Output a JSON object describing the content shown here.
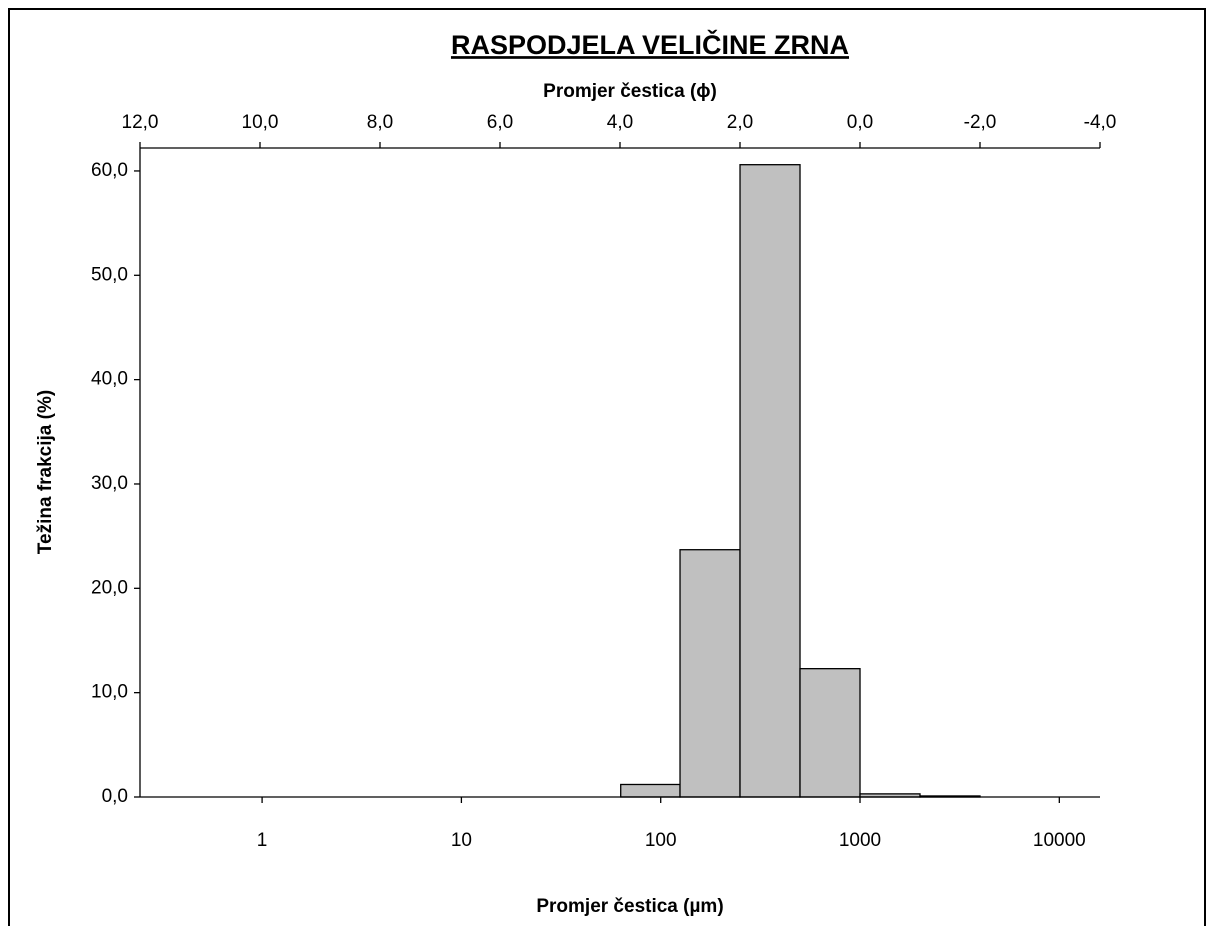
{
  "chart_data": {
    "type": "histogram",
    "title": "RASPODJELA VELIČINE ZRNA",
    "x2_label": "Promjer čestica (ϕ)",
    "x_label": "Promjer čestica (µm)",
    "y_label": "Težina frakcija (%)",
    "bins": [
      63,
      125,
      250,
      500,
      1000,
      2000,
      4000
    ],
    "counts": [
      1.2,
      23.7,
      60.6,
      12.3,
      0.3,
      0.1
    ],
    "color": "#c0c0c0",
    "x_scale": "log",
    "xlim": [
      0.244,
      16000
    ],
    "xticks": [
      1,
      10,
      100,
      1000,
      10000
    ],
    "x2lim": [
      12,
      -4
    ],
    "x2ticks": [
      {
        "value": 12,
        "label": "12,0"
      },
      {
        "value": 10,
        "label": "10,0"
      },
      {
        "value": 8,
        "label": "8,0"
      },
      {
        "value": 6,
        "label": "6,0"
      },
      {
        "value": 4,
        "label": "4,0"
      },
      {
        "value": 2,
        "label": "2,0"
      },
      {
        "value": 0,
        "label": "0,0"
      },
      {
        "value": -2,
        "label": "-2,0"
      },
      {
        "value": -4,
        "label": "-4,0"
      }
    ],
    "ylim": [
      0,
      62.2
    ],
    "yticks": [
      {
        "value": 0,
        "label": "0,0"
      },
      {
        "value": 10,
        "label": "10,0"
      },
      {
        "value": 20,
        "label": "20,0"
      },
      {
        "value": 30,
        "label": "30,0"
      },
      {
        "value": 40,
        "label": "40,0"
      },
      {
        "value": 50,
        "label": "50,0"
      },
      {
        "value": 60,
        "label": "60,0"
      }
    ],
    "grid": false
  }
}
